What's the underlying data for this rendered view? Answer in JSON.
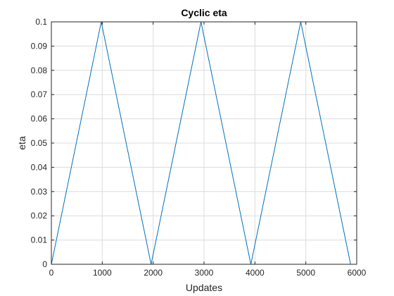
{
  "chart_data": {
    "type": "line",
    "title": "Cyclic eta",
    "xlabel": "Updates",
    "ylabel": "eta",
    "xlim": [
      0,
      6000
    ],
    "ylim": [
      0,
      0.1
    ],
    "xticks": [
      0,
      1000,
      2000,
      3000,
      4000,
      5000,
      6000
    ],
    "xtick_labels": [
      "0",
      "1000",
      "2000",
      "3000",
      "4000",
      "5000",
      "6000"
    ],
    "yticks": [
      0,
      0.01,
      0.02,
      0.03,
      0.04,
      0.05,
      0.06,
      0.07,
      0.08,
      0.09,
      0.1
    ],
    "ytick_labels": [
      "0",
      "0.01",
      "0.02",
      "0.03",
      "0.04",
      "0.05",
      "0.06",
      "0.07",
      "0.08",
      "0.09",
      "0.1"
    ],
    "grid": true,
    "series": [
      {
        "name": "eta",
        "color": "#0072BD",
        "x": [
          0,
          980,
          1960,
          2940,
          3920,
          4900,
          5880
        ],
        "y": [
          0,
          0.1,
          0,
          0.1,
          0,
          0.1,
          0
        ]
      }
    ]
  }
}
